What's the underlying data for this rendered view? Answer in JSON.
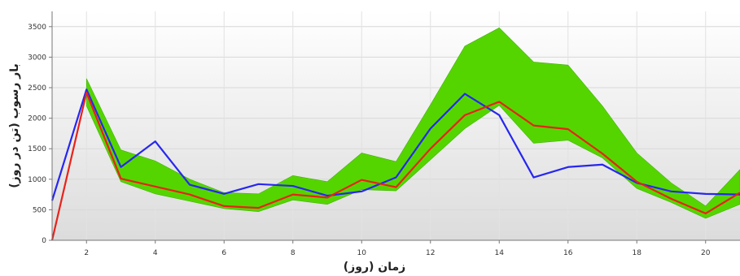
{
  "chart_data": {
    "type": "line",
    "title": "",
    "xlabel": "زمان (روز)",
    "ylabel": "بار رسوب (تن در روز)",
    "xlim": [
      1,
      21
    ],
    "ylim": [
      0,
      3750
    ],
    "x_ticks": [
      2,
      4,
      6,
      8,
      10,
      12,
      14,
      16,
      18,
      20
    ],
    "y_ticks": [
      0,
      500,
      1000,
      1500,
      2000,
      2500,
      3000,
      3500
    ],
    "grid": true,
    "band": {
      "x": [
        2,
        3,
        4,
        5,
        6,
        7,
        8,
        9,
        10,
        11,
        12,
        13,
        14,
        15,
        16,
        17,
        18,
        19,
        20,
        21
      ],
      "upper": [
        2650,
        1480,
        1300,
        1000,
        780,
        760,
        1060,
        960,
        1430,
        1290,
        2220,
        3180,
        3480,
        2920,
        2870,
        2200,
        1430,
        940,
        560,
        1160
      ],
      "lower": [
        2200,
        960,
        760,
        640,
        520,
        470,
        660,
        590,
        830,
        810,
        1320,
        1830,
        2210,
        1590,
        1640,
        1350,
        850,
        620,
        360,
        590
      ],
      "color": "#55d500"
    },
    "series": [
      {
        "color": "#2727f0",
        "x": [
          1,
          2,
          3,
          4,
          5,
          6,
          7,
          8,
          9,
          10,
          11,
          12,
          13,
          14,
          15,
          16,
          17,
          18,
          19,
          20,
          21
        ],
        "values": [
          650,
          2470,
          1200,
          1620,
          910,
          760,
          920,
          890,
          730,
          800,
          1030,
          1830,
          2400,
          2050,
          1030,
          1200,
          1240,
          940,
          800,
          760,
          750
        ]
      },
      {
        "color": "#e8221a",
        "x": [
          1,
          2,
          3,
          4,
          5,
          6,
          7,
          8,
          9,
          10,
          11,
          12,
          13,
          14,
          15,
          16,
          17,
          18,
          19,
          20,
          21
        ],
        "values": [
          0,
          2420,
          1010,
          880,
          750,
          560,
          530,
          750,
          700,
          990,
          870,
          1500,
          2050,
          2270,
          1880,
          1820,
          1420,
          960,
          680,
          440,
          780
        ]
      }
    ]
  }
}
